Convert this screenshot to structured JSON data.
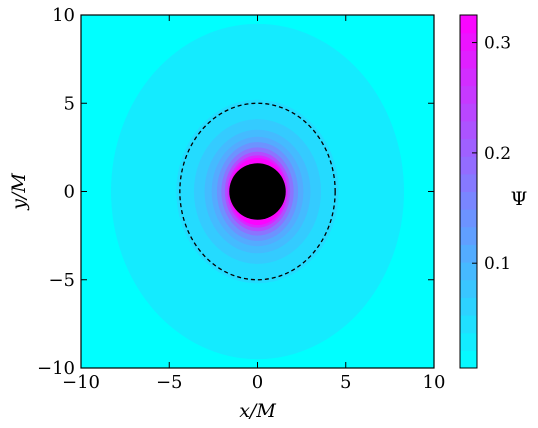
{
  "chart_data": {
    "type": "heatmap",
    "title": "",
    "xlabel": "x/M",
    "ylabel": "y/M",
    "xlim": [
      -10,
      10
    ],
    "ylim": [
      -10,
      10
    ],
    "xticks": [
      -10,
      -5,
      0,
      5,
      10
    ],
    "yticks": [
      -10,
      -5,
      0,
      5,
      10
    ],
    "xtick_labels": [
      "−10",
      "−5",
      "0",
      "5",
      "10"
    ],
    "ytick_labels": [
      "−10",
      "−5",
      "0",
      "5",
      "10"
    ],
    "grid": false,
    "field": {
      "name": "Ψ",
      "background_value": 0.005,
      "outer_halo": {
        "value": 0.03,
        "x_radius": 8.3,
        "y_radius": 9.5
      },
      "contour_levels": [
        {
          "value": 0.05,
          "x_radius": 4.6,
          "y_radius": 5.2
        },
        {
          "value": 0.07,
          "x_radius": 3.6,
          "y_radius": 4.1
        },
        {
          "value": 0.09,
          "x_radius": 3.0,
          "y_radius": 3.5
        },
        {
          "value": 0.11,
          "x_radius": 2.6,
          "y_radius": 3.1
        },
        {
          "value": 0.14,
          "x_radius": 2.3,
          "y_radius": 2.8
        },
        {
          "value": 0.18,
          "x_radius": 2.05,
          "y_radius": 2.5
        },
        {
          "value": 0.23,
          "x_radius": 1.85,
          "y_radius": 2.25
        },
        {
          "value": 0.28,
          "x_radius": 1.7,
          "y_radius": 2.05
        },
        {
          "value": 0.32,
          "x_radius": 1.6,
          "y_radius": 1.9
        }
      ]
    },
    "black_hole": {
      "center": [
        0,
        0
      ],
      "radius": 1.6,
      "color": "#000000"
    },
    "dashed_contour": {
      "center": [
        0,
        0
      ],
      "x_radius": 4.4,
      "y_radius": 5.0,
      "color": "#000000"
    },
    "colorbar": {
      "label": "Ψ",
      "min": 0.005,
      "max": 0.325,
      "ticks": [
        0.1,
        0.2,
        0.3
      ],
      "tick_labels": [
        "0.1",
        "0.2",
        "0.3"
      ],
      "color_low": "#00ffff",
      "color_high": "#ff00ff"
    }
  }
}
